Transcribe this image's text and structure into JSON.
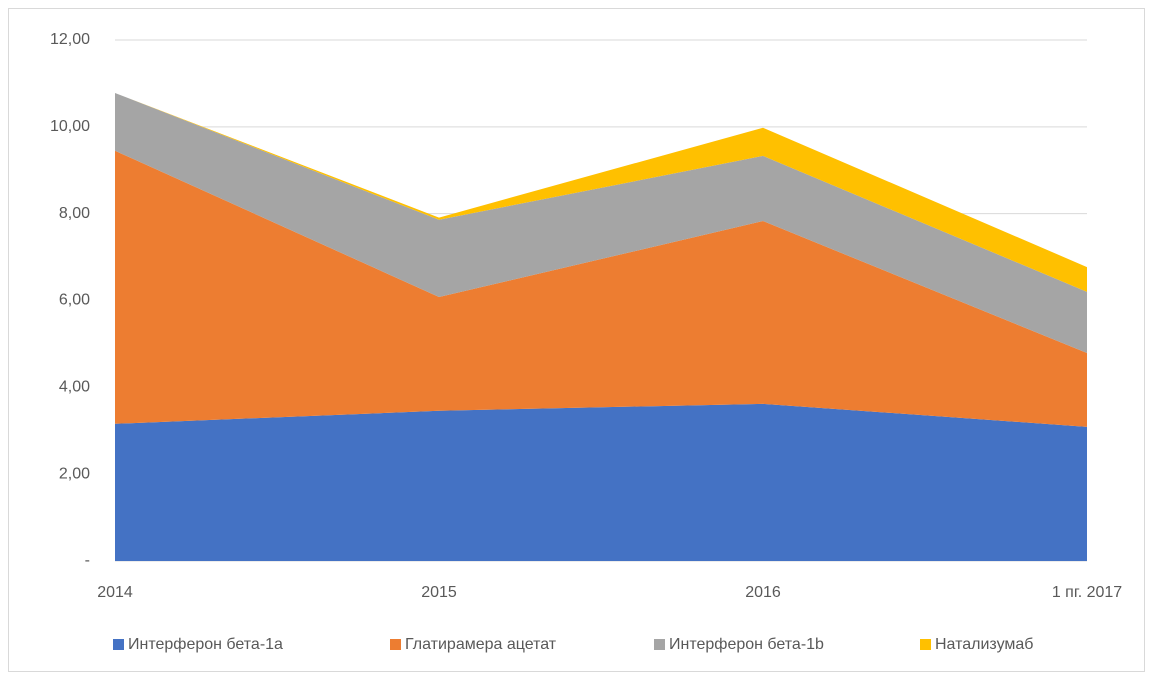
{
  "chart_data": {
    "type": "stacked_area",
    "categories": [
      "2014",
      "2015",
      "2016",
      "1 пг. 2017"
    ],
    "series": [
      {
        "name": "Интерферон бета-1а",
        "color": "#4472c4",
        "values": [
          3.16,
          3.46,
          3.62,
          3.09
        ]
      },
      {
        "name": "Глатирамера ацетат",
        "color": "#ed7d31",
        "values": [
          6.29,
          2.62,
          4.21,
          1.7
        ]
      },
      {
        "name": "Интерферон бета-1b",
        "color": "#a5a5a5",
        "values": [
          1.33,
          1.78,
          1.5,
          1.41
        ]
      },
      {
        "name": "Натализумаб",
        "color": "#ffc000",
        "values": [
          0,
          0.05,
          0.65,
          0.57
        ]
      }
    ],
    "ylim": [
      0,
      12
    ],
    "yticks": [
      {
        "value": 0,
        "label": "-"
      },
      {
        "value": 2,
        "label": "2,00"
      },
      {
        "value": 4,
        "label": "4,00"
      },
      {
        "value": 6,
        "label": "6,00"
      },
      {
        "value": 8,
        "label": "8,00"
      },
      {
        "value": 10,
        "label": "10,00"
      },
      {
        "value": 12,
        "label": "12,00"
      }
    ],
    "grid": true,
    "legend": "bottom"
  }
}
